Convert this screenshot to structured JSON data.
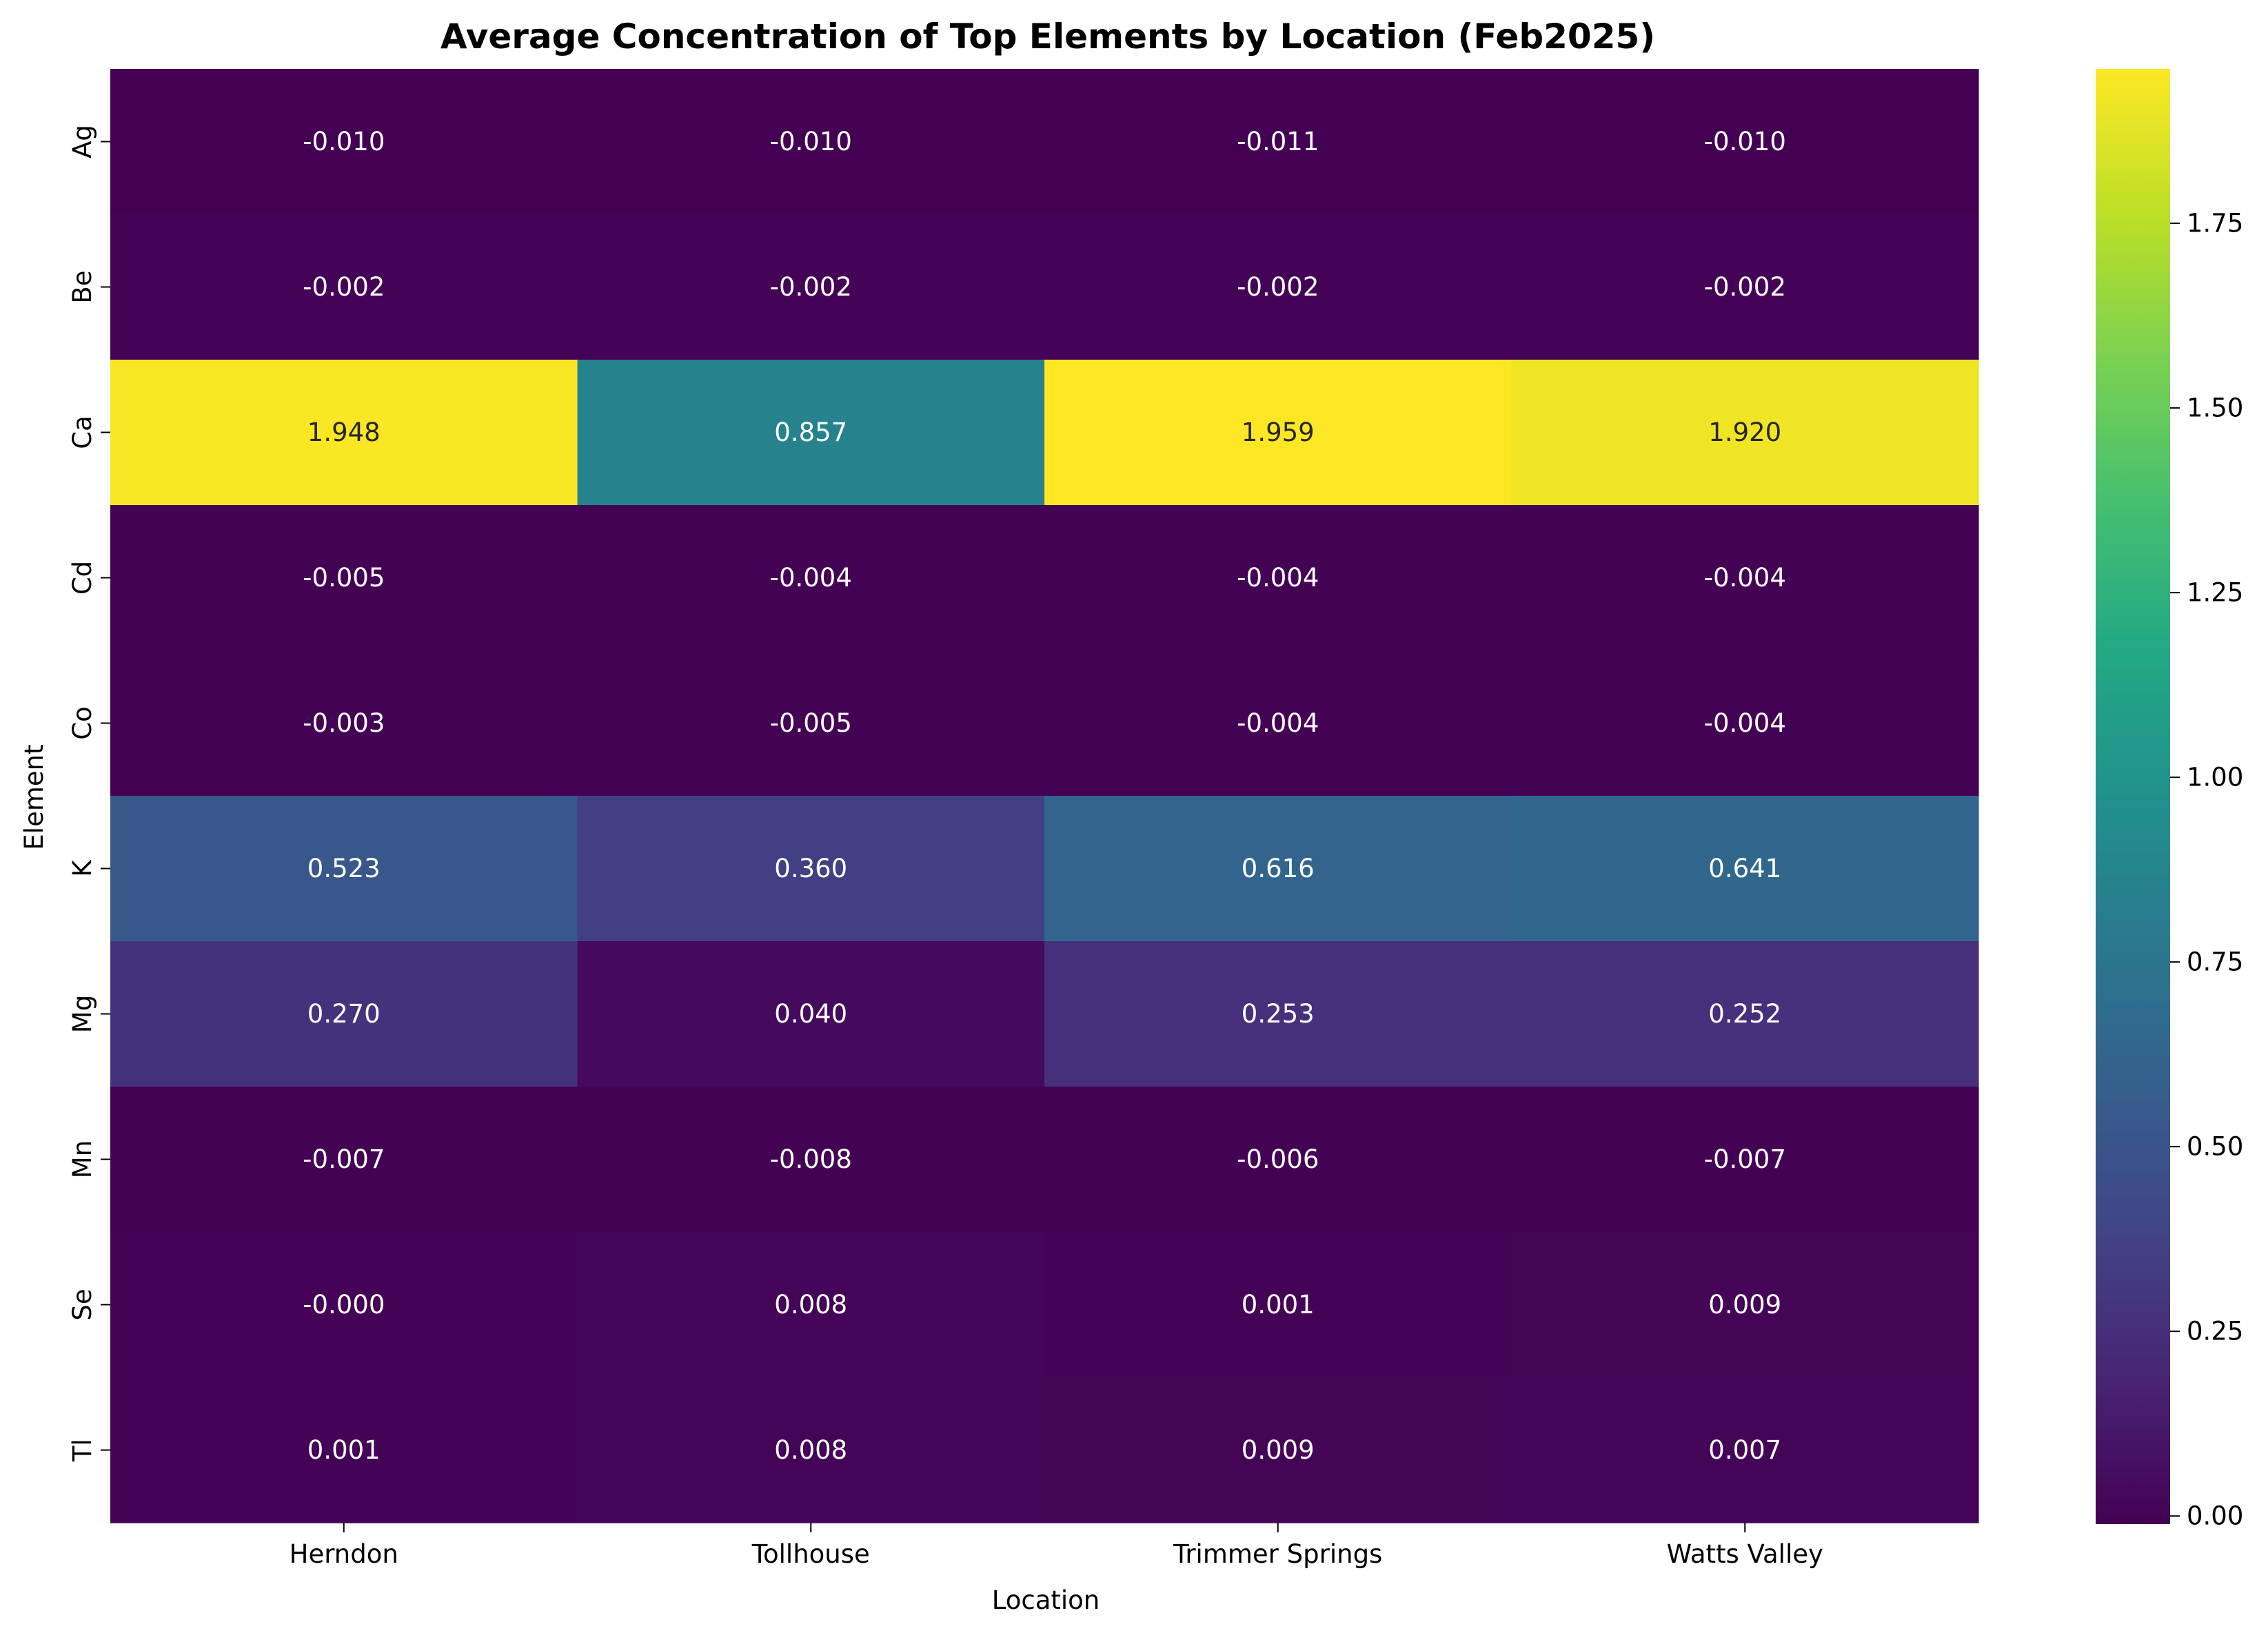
{
  "chart_data": {
    "type": "heatmap",
    "title": "Average Concentration of Top Elements by Location (Feb2025)",
    "xlabel": "Location",
    "ylabel": "Element",
    "colormap": "viridis",
    "colorbar_range": [
      -0.011,
      1.959
    ],
    "colorbar_ticks": [
      "0.00",
      "0.25",
      "0.50",
      "0.75",
      "1.00",
      "1.25",
      "1.50",
      "1.75"
    ],
    "columns": [
      "Herndon",
      "Tollhouse",
      "Trimmer Springs",
      "Watts Valley"
    ],
    "rows": [
      "Ag",
      "Be",
      "Ca",
      "Cd",
      "Co",
      "K",
      "Mg",
      "Mn",
      "Se",
      "Tl"
    ],
    "values": [
      [
        -0.01,
        -0.01,
        -0.011,
        -0.01
      ],
      [
        -0.002,
        -0.002,
        -0.002,
        -0.002
      ],
      [
        1.948,
        0.857,
        1.959,
        1.92
      ],
      [
        -0.005,
        -0.004,
        -0.004,
        -0.004
      ],
      [
        -0.003,
        -0.005,
        -0.004,
        -0.004
      ],
      [
        0.523,
        0.36,
        0.616,
        0.641
      ],
      [
        0.27,
        0.04,
        0.253,
        0.252
      ],
      [
        -0.007,
        -0.008,
        -0.006,
        -0.007
      ],
      [
        -0.0,
        0.008,
        0.001,
        0.009
      ],
      [
        0.001,
        0.008,
        0.009,
        0.007
      ]
    ],
    "labels": [
      [
        "-0.010",
        "-0.010",
        "-0.011",
        "-0.010"
      ],
      [
        "-0.002",
        "-0.002",
        "-0.002",
        "-0.002"
      ],
      [
        "1.948",
        "0.857",
        "1.959",
        "1.920"
      ],
      [
        "-0.005",
        "-0.004",
        "-0.004",
        "-0.004"
      ],
      [
        "-0.003",
        "-0.005",
        "-0.004",
        "-0.004"
      ],
      [
        "0.523",
        "0.360",
        "0.616",
        "0.641"
      ],
      [
        "0.270",
        "0.040",
        "0.253",
        "0.252"
      ],
      [
        "-0.007",
        "-0.008",
        "-0.006",
        "-0.007"
      ],
      [
        "-0.000",
        "0.008",
        "0.001",
        "0.009"
      ],
      [
        "0.001",
        "0.008",
        "0.009",
        "0.007"
      ]
    ]
  }
}
